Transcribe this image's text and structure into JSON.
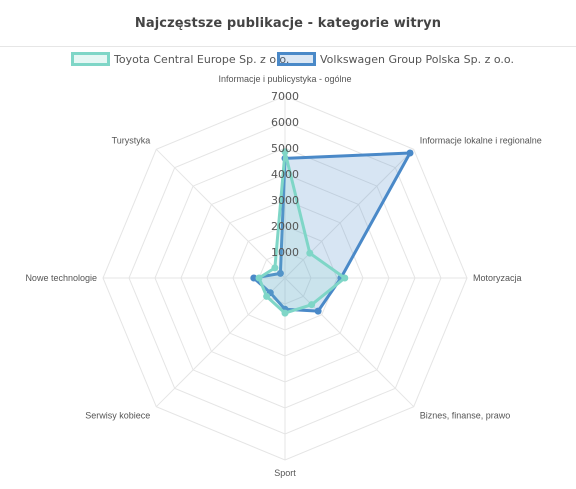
{
  "title": "Najczęstsze publikacje - kategorie witryn",
  "chart_data": {
    "type": "radar",
    "title": "Najczęstsze publikacje - kategorie witryn",
    "axes": [
      "Informacje i publicystyka - ogólne",
      "Informacje lokalne i regionalne",
      "Motoryzacja",
      "Biznes, finanse, prawo",
      "Sport",
      "Serwisy kobiece",
      "Nowe technologie",
      "Turystyka"
    ],
    "scale": {
      "min": 0,
      "max": 7000,
      "step": 1000
    },
    "ticks": [
      "1000",
      "2000",
      "3000",
      "4000",
      "5000",
      "6000",
      "7000"
    ],
    "grid": true,
    "legend_position": "top",
    "series": [
      {
        "name": "Toyota Central Europe Sp. z o.o.",
        "color": "#7fd6c7",
        "values": [
          4850,
          1350,
          2300,
          1450,
          1350,
          1000,
          1000,
          550
        ]
      },
      {
        "name": "Volkswagen Group Polska Sp. z o.o.",
        "color": "#4a89c8",
        "values": [
          4600,
          6800,
          2150,
          1800,
          1200,
          800,
          1200,
          250
        ]
      }
    ]
  }
}
